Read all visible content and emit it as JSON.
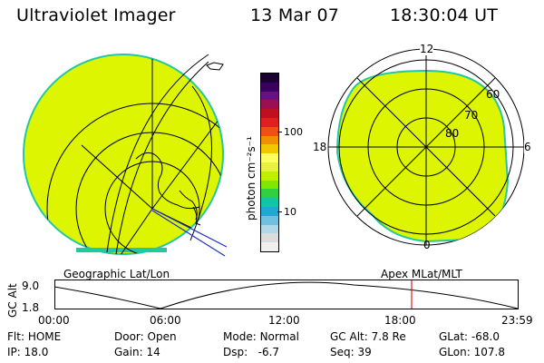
{
  "header": {
    "instrument": "Ultraviolet Imager",
    "date": "13 Mar 07",
    "time": "18:30:04 UT"
  },
  "colors": {
    "field_fill": "#ddf500",
    "edge": "#22c8a0",
    "grid": "#000000",
    "marker": "#d02020"
  },
  "colorbar": {
    "unit_label": "photon cm⁻²s⁻¹",
    "tick_labels": [
      "100",
      "10"
    ],
    "colors": [
      "#1a0030",
      "#3a0060",
      "#6a1080",
      "#9a1050",
      "#c01020",
      "#e02020",
      "#f05010",
      "#f09000",
      "#f0c800",
      "#ffff60",
      "#e8f040",
      "#c0f000",
      "#80e800",
      "#30d040",
      "#10c8a0",
      "#20a8d0",
      "#70c0e0",
      "#b0d8e8",
      "#dcdcdc",
      "#f0f0f0"
    ]
  },
  "left_panel": {
    "caption": "Geographic Lat/Lon"
  },
  "right_panel": {
    "caption": "Apex MLat/MLT",
    "mlt_labels": {
      "top": "12",
      "left": "18",
      "right": "6",
      "bottom": "0"
    },
    "lat_labels": [
      "60",
      "70",
      "80"
    ]
  },
  "timeline": {
    "ylabel": "GC Alt",
    "y_ticks": [
      "9.0",
      "1.8"
    ],
    "x_ticks": [
      "00:00",
      "06:00",
      "12:00",
      "18:00",
      "23:59"
    ],
    "current_time_fraction": 0.771
  },
  "status": {
    "flt_label": "Flt:",
    "flt_value": "HOME",
    "door_label": "Door:",
    "door_value": "Open",
    "mode_label": "Mode:",
    "mode_value": "Normal",
    "gcalt_label": "GC Alt:",
    "gcalt_value": "7.8 Re",
    "glat_label": "GLat:",
    "glat_value": "-68.0",
    "ip_label": "IP:",
    "ip_value": "18.0",
    "gain_label": "Gain:",
    "gain_value": "14",
    "dsp_label": "Dsp:",
    "dsp_value": "-6.7",
    "seq_label": "Seq:",
    "seq_value": "39",
    "glon_label": "GLon:",
    "glon_value": "107.8"
  }
}
